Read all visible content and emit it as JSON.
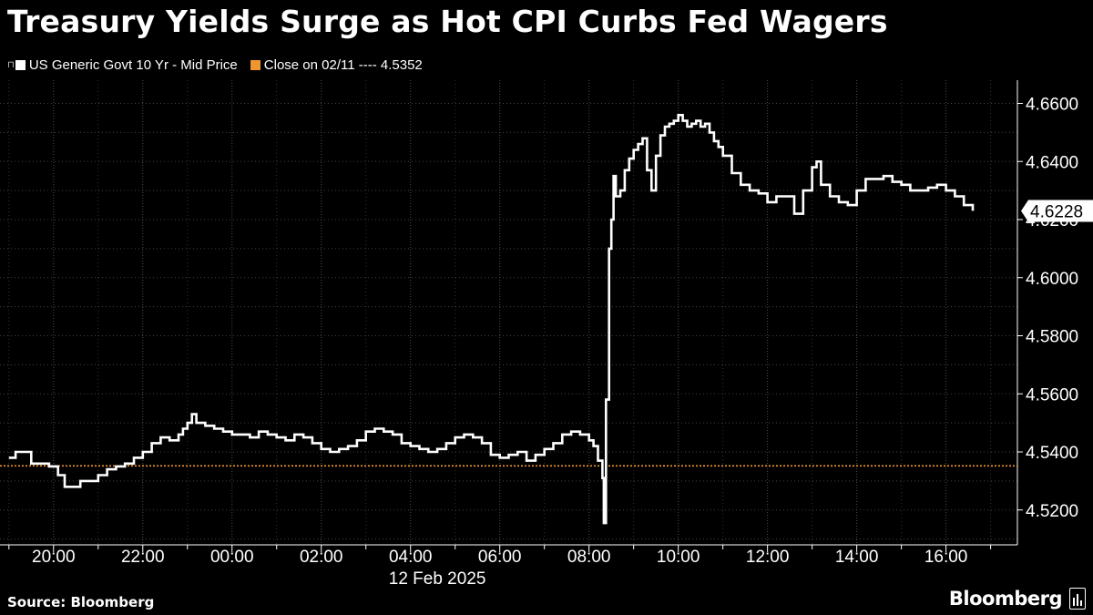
{
  "title": "Treasury Yields Surge as Hot CPI Curbs Fed Wagers",
  "legend": {
    "series_label": "US Generic Govt 10 Yr - Mid Price",
    "close_label": "Close on 02/11 ---- 4.5352"
  },
  "footer": {
    "source": "Source: Bloomberg",
    "brand": "Bloomberg"
  },
  "colors": {
    "background": "#000000",
    "line": "#ffffff",
    "close_line": "#f0962f",
    "grid": "#555555"
  },
  "chart_data": {
    "type": "line",
    "title": "Treasury Yields Surge as Hot CPI Curbs Fed Wagers",
    "xlabel": "12 Feb 2025",
    "ylabel": "",
    "x_unit": "hours from 00:00 on 12 Feb 2025",
    "xlim": [
      -5.2,
      17.6
    ],
    "ylim": [
      4.508,
      4.668
    ],
    "x_ticks": [
      -4,
      -2,
      0,
      2,
      4,
      6,
      8,
      10,
      12,
      14,
      16
    ],
    "x_tick_labels": [
      "20:00",
      "22:00",
      "00:00",
      "02:00",
      "04:00",
      "06:00",
      "08:00",
      "10:00",
      "12:00",
      "14:00",
      "16:00"
    ],
    "y_ticks": [
      4.52,
      4.54,
      4.56,
      4.58,
      4.6,
      4.62,
      4.64,
      4.66
    ],
    "y_tick_labels": [
      "4.5200",
      "4.5400",
      "4.5600",
      "4.5800",
      "4.6000",
      "4.6200",
      "4.6400",
      "4.6600"
    ],
    "grid": true,
    "legend_position": "top-left",
    "close_value": 4.5352,
    "last_value_label": "4.6228",
    "series": [
      {
        "name": "US Generic Govt 10 Yr - Mid Price",
        "x": [
          -5.0,
          -4.85,
          -4.65,
          -4.5,
          -4.3,
          -4.1,
          -3.9,
          -3.75,
          -3.6,
          -3.4,
          -3.2,
          -3.0,
          -2.8,
          -2.6,
          -2.4,
          -2.2,
          -2.0,
          -1.8,
          -1.6,
          -1.4,
          -1.2,
          -1.1,
          -1.0,
          -0.9,
          -0.8,
          -0.6,
          -0.4,
          -0.2,
          0.0,
          0.2,
          0.4,
          0.6,
          0.8,
          1.0,
          1.2,
          1.4,
          1.6,
          1.8,
          2.0,
          2.2,
          2.4,
          2.6,
          2.8,
          3.0,
          3.2,
          3.4,
          3.6,
          3.8,
          4.0,
          4.2,
          4.4,
          4.6,
          4.8,
          5.0,
          5.2,
          5.4,
          5.6,
          5.8,
          6.0,
          6.2,
          6.4,
          6.6,
          6.8,
          7.0,
          7.2,
          7.4,
          7.6,
          7.8,
          8.0,
          8.1,
          8.2,
          8.3,
          8.33,
          8.38,
          8.45,
          8.5,
          8.55,
          8.6,
          8.7,
          8.8,
          8.9,
          9.0,
          9.1,
          9.2,
          9.3,
          9.4,
          9.5,
          9.6,
          9.7,
          9.8,
          9.9,
          10.0,
          10.1,
          10.2,
          10.3,
          10.4,
          10.5,
          10.6,
          10.7,
          10.8,
          10.9,
          11.0,
          11.2,
          11.4,
          11.6,
          11.8,
          12.0,
          12.2,
          12.4,
          12.6,
          12.8,
          13.0,
          13.1,
          13.2,
          13.4,
          13.6,
          13.8,
          14.0,
          14.2,
          14.4,
          14.6,
          14.8,
          15.0,
          15.2,
          15.4,
          15.6,
          15.8,
          16.0,
          16.2,
          16.4,
          16.6
        ],
        "y": [
          4.538,
          4.54,
          4.54,
          4.536,
          4.536,
          4.535,
          4.532,
          4.528,
          4.528,
          4.53,
          4.53,
          4.532,
          4.534,
          4.535,
          4.536,
          4.538,
          4.54,
          4.543,
          4.545,
          4.544,
          4.546,
          4.548,
          4.55,
          4.553,
          4.55,
          4.549,
          4.548,
          4.547,
          4.546,
          4.546,
          4.545,
          4.547,
          4.546,
          4.545,
          4.544,
          4.546,
          4.545,
          4.543,
          4.541,
          4.54,
          4.541,
          4.542,
          4.544,
          4.547,
          4.548,
          4.547,
          4.546,
          4.543,
          4.542,
          4.541,
          4.54,
          4.541,
          4.543,
          4.545,
          4.546,
          4.545,
          4.543,
          4.539,
          4.538,
          4.539,
          4.54,
          4.537,
          4.539,
          4.541,
          4.543,
          4.546,
          4.547,
          4.546,
          4.544,
          4.542,
          4.537,
          4.531,
          4.5155,
          4.558,
          4.61,
          4.62,
          4.635,
          4.628,
          4.63,
          4.637,
          4.641,
          4.644,
          4.646,
          4.648,
          4.637,
          4.63,
          4.642,
          4.649,
          4.652,
          4.653,
          4.654,
          4.656,
          4.654,
          4.652,
          4.653,
          4.654,
          4.652,
          4.653,
          4.65,
          4.647,
          4.645,
          4.642,
          4.636,
          4.632,
          4.63,
          4.629,
          4.626,
          4.628,
          4.628,
          4.622,
          4.63,
          4.638,
          4.64,
          4.632,
          4.628,
          4.626,
          4.625,
          4.63,
          4.634,
          4.634,
          4.635,
          4.633,
          4.632,
          4.63,
          4.63,
          4.631,
          4.632,
          4.63,
          4.628,
          4.625,
          4.623
        ]
      }
    ]
  }
}
